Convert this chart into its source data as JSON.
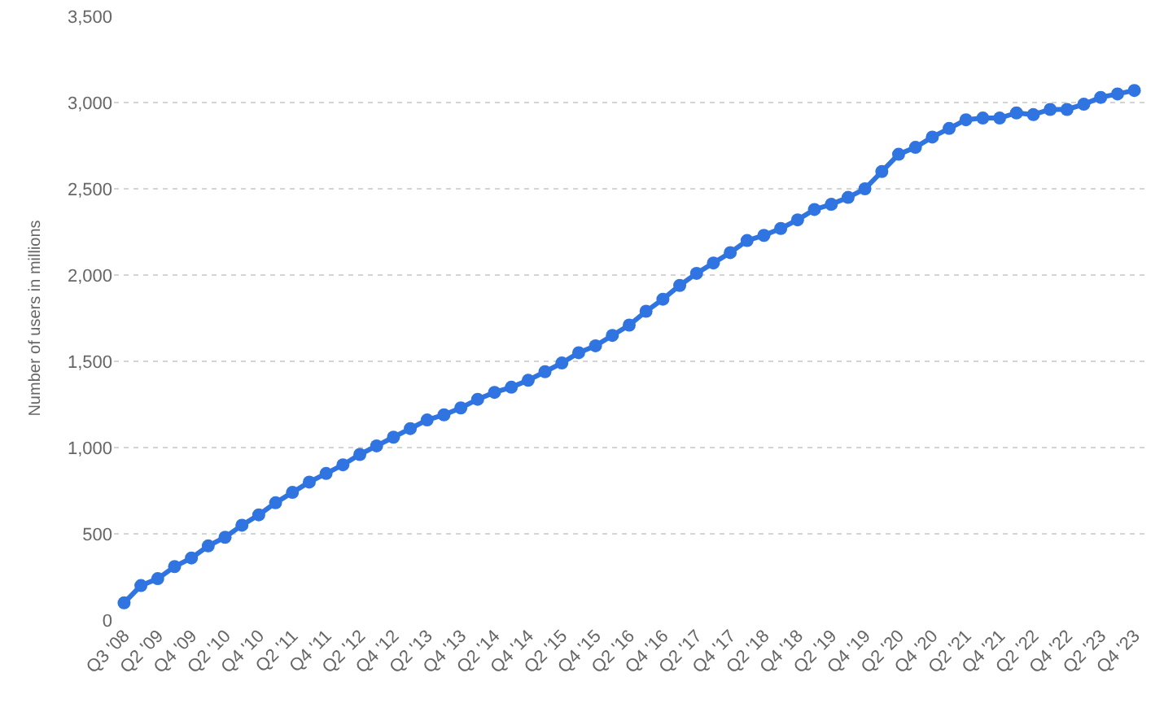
{
  "chart_data": {
    "type": "line",
    "ylabel": "Number of users in millions",
    "categories": [
      "Q3 '08",
      null,
      "Q2 '09",
      null,
      "Q4 '09",
      null,
      "Q2 '10",
      null,
      "Q4 '10",
      null,
      "Q2 '11",
      null,
      "Q4 '11",
      null,
      "Q2 '12",
      null,
      "Q4 '12",
      null,
      "Q2 '13",
      null,
      "Q4 '13",
      null,
      "Q2 '14",
      null,
      "Q4 '14",
      null,
      "Q2 '15",
      null,
      "Q4 '15",
      null,
      "Q2 '16",
      null,
      "Q4 '16",
      null,
      "Q2 '17",
      null,
      "Q4 '17",
      null,
      "Q2 '18",
      null,
      "Q4 '18",
      null,
      "Q2 '19",
      null,
      "Q4 '19",
      null,
      "Q2 '20",
      null,
      "Q4 '20",
      null,
      "Q2 '21",
      null,
      "Q4 '21",
      null,
      "Q2 '22",
      null,
      "Q4 '22",
      null,
      "Q2 '23",
      null,
      "Q4 '23"
    ],
    "series": [
      {
        "color": "#2f74e0",
        "values": [
          100,
          200,
          240,
          310,
          360,
          430,
          480,
          550,
          610,
          680,
          740,
          800,
          850,
          900,
          960,
          1010,
          1060,
          1110,
          1160,
          1190,
          1230,
          1280,
          1320,
          1350,
          1390,
          1440,
          1490,
          1550,
          1590,
          1650,
          1710,
          1790,
          1860,
          1940,
          2010,
          2070,
          2130,
          2200,
          2230,
          2270,
          2320,
          2380,
          2410,
          2450,
          2500,
          2600,
          2700,
          2740,
          2800,
          2850,
          2900,
          2910,
          2910,
          2940,
          2930,
          2960,
          2960,
          2990,
          3030,
          3050,
          3070
        ]
      }
    ],
    "ylim": [
      0,
      3500
    ],
    "yticks": [
      0,
      500,
      {
        "value": 1000,
        "label": "1,000"
      },
      {
        "value": 1500,
        "label": "1,500"
      },
      {
        "value": 2000,
        "label": "2,000"
      },
      {
        "value": 2500,
        "label": "2,500"
      },
      {
        "value": 3000,
        "label": "3,000"
      },
      {
        "value": 3500,
        "label": "3,500"
      }
    ],
    "grid": "y",
    "marker": "circle",
    "line_style": "solid"
  }
}
